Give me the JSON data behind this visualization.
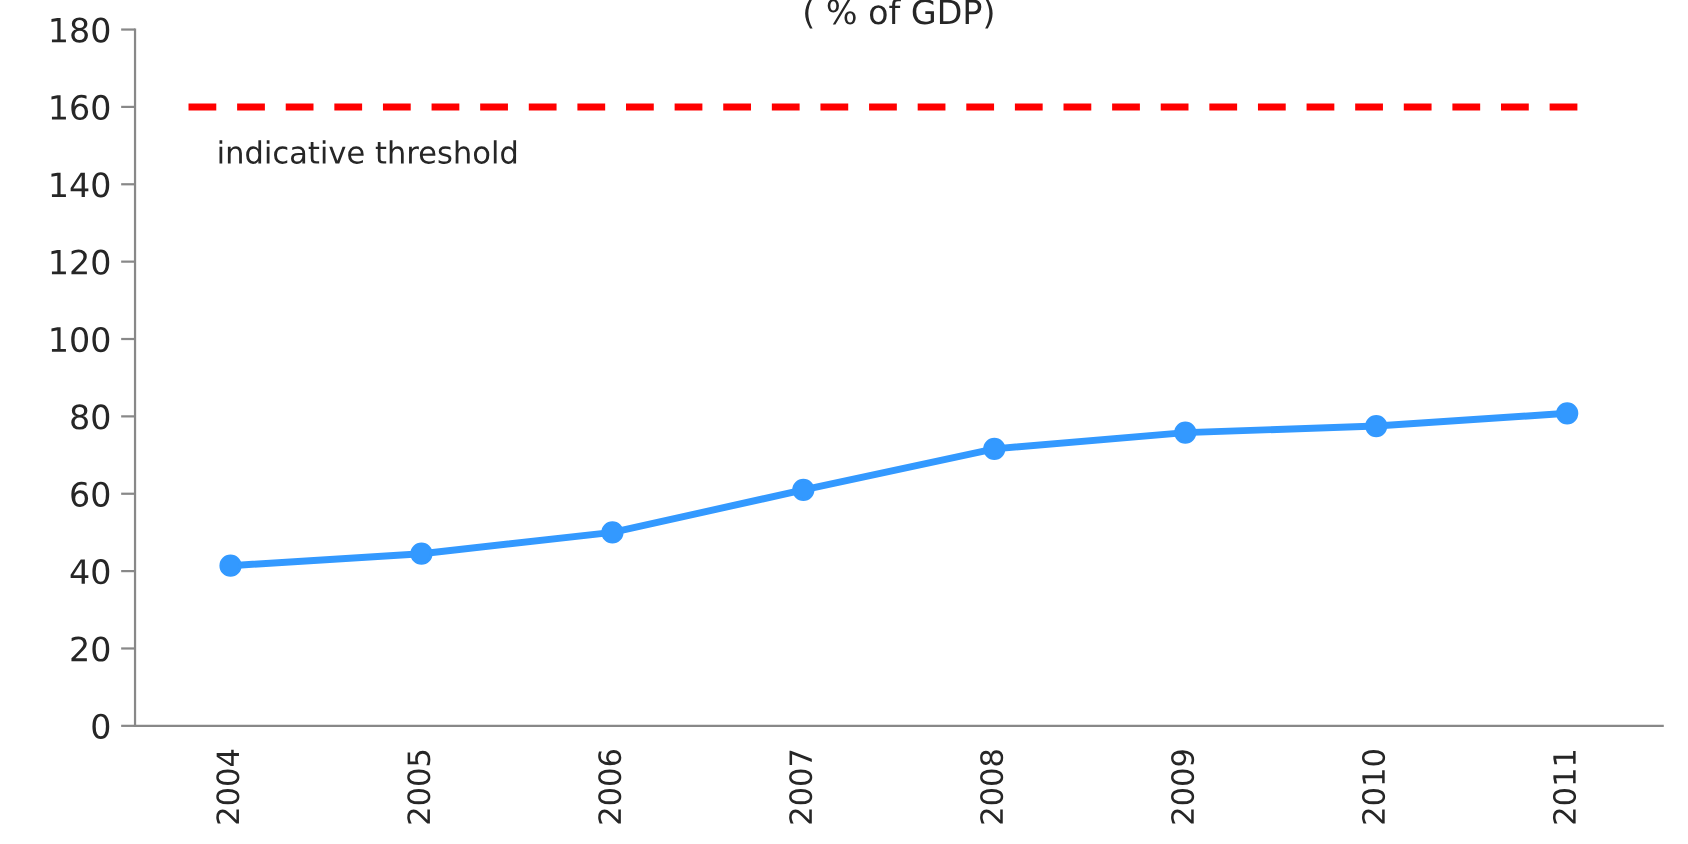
{
  "chart_data": {
    "type": "line",
    "title": "( % of GDP)",
    "categories": [
      "2004",
      "2005",
      "2006",
      "2007",
      "2008",
      "2009",
      "2010",
      "2011"
    ],
    "series": [
      {
        "color": "#3399ff",
        "values": [
          41.4,
          44.5,
          50,
          61,
          71.6,
          75.8,
          77.5,
          80.8
        ]
      }
    ],
    "ref_lines": [
      {
        "axis": "y",
        "value": 160,
        "label": "indicative threshold",
        "color": "#ff0000",
        "line_style": "dashed"
      }
    ],
    "ylim": [
      0,
      180
    ],
    "yticks": [
      0,
      20,
      40,
      60,
      80,
      100,
      120,
      140,
      160,
      180
    ],
    "marker": "circle",
    "grid": false,
    "legend": false
  }
}
